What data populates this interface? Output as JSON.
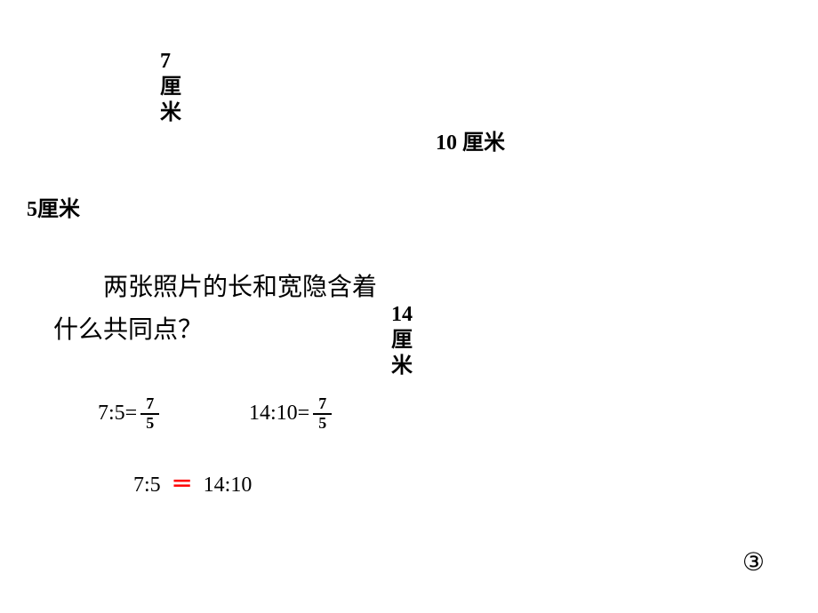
{
  "labels": {
    "seven_cm": "7\n厘\n米",
    "ten_cm": "10 厘米",
    "five_cm": "5厘米",
    "fourteen_cm": "14\n厘\n米"
  },
  "question": {
    "line1": "　　两张照片的长和宽隐含着",
    "line2": "什么共同点？"
  },
  "equations": {
    "eq1_left": "7:5=",
    "eq1_num": "7",
    "eq1_den": "5",
    "eq2_left": "14:10=",
    "eq2_num": "7",
    "eq2_den": "5",
    "eq3_left": "7:5",
    "eq3_sign": "＝",
    "eq3_right": "14:10"
  },
  "page_number": "③",
  "colors": {
    "text": "#000000",
    "red": "#ff0000",
    "background": "#ffffff"
  },
  "typography": {
    "body_fontsize": 24,
    "question_fontsize": 28,
    "fraction_fontsize": 18
  }
}
